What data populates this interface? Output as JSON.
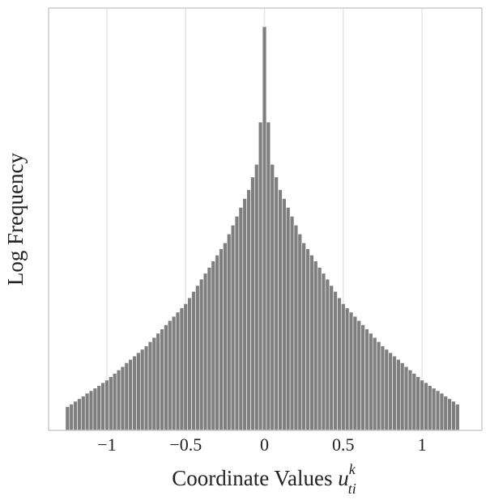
{
  "chart_data": {
    "type": "histogram",
    "x_label": {
      "text": "Coordinate Values",
      "symbol": "u",
      "subscript": "ti",
      "superscript": "k"
    },
    "y_label": "Log Frequency",
    "color": "#7f7f7f",
    "bins": [
      -1.2625,
      -1.2375,
      -1.2125,
      -1.1875,
      -1.1625,
      -1.1375,
      -1.1125,
      -1.0875,
      -1.0625,
      -1.0375,
      -1.0125,
      -0.9875,
      -0.9625,
      -0.9375,
      -0.9125,
      -0.8875,
      -0.8625,
      -0.8375,
      -0.8125,
      -0.7875,
      -0.7625,
      -0.7375,
      -0.7125,
      -0.6875,
      -0.6625,
      -0.6375,
      -0.6125,
      -0.5875,
      -0.5625,
      -0.5375,
      -0.5125,
      -0.4875,
      -0.4625,
      -0.4375,
      -0.4125,
      -0.3875,
      -0.3625,
      -0.3375,
      -0.3125,
      -0.2875,
      -0.2625,
      -0.2375,
      -0.2125,
      -0.1875,
      -0.1625,
      -0.1375,
      -0.1125,
      -0.0875,
      -0.0625,
      -0.0375,
      -0.0125,
      0.0125,
      0.0375,
      0.0625,
      0.0875,
      0.1125,
      0.1375,
      0.1625,
      0.1875,
      0.2125,
      0.2375,
      0.2625,
      0.2875,
      0.3125,
      0.3375,
      0.3625,
      0.3875,
      0.4125,
      0.4375,
      0.4625,
      0.4875,
      0.5125,
      0.5375,
      0.5625,
      0.5875,
      0.6125,
      0.6375,
      0.6625,
      0.6875,
      0.7125,
      0.7375,
      0.7625,
      0.7875,
      0.8125,
      0.8375,
      0.8625,
      0.8875,
      0.9125,
      0.9375,
      0.9625,
      0.9875,
      1.0125,
      1.0375,
      1.0625,
      1.0875,
      1.1125,
      1.1375,
      1.1625,
      1.1875,
      1.2125,
      1.2375
    ],
    "counts": [
      0.56,
      0.62,
      0.69,
      0.75,
      0.81,
      0.88,
      0.94,
      1.0,
      1.06,
      1.13,
      1.19,
      1.27,
      1.35,
      1.43,
      1.51,
      1.6,
      1.68,
      1.76,
      1.84,
      1.92,
      2.0,
      2.1,
      2.2,
      2.3,
      2.4,
      2.5,
      2.6,
      2.7,
      2.8,
      2.9,
      3.0,
      3.14,
      3.29,
      3.43,
      3.58,
      3.72,
      3.86,
      4.01,
      4.15,
      4.3,
      4.44,
      4.65,
      4.86,
      5.07,
      5.28,
      5.49,
      5.7,
      6.0,
      6.3,
      7.3,
      9.56,
      7.3,
      6.3,
      6.0,
      5.7,
      5.49,
      5.28,
      5.07,
      4.86,
      4.65,
      4.44,
      4.3,
      4.15,
      4.01,
      3.86,
      3.72,
      3.58,
      3.43,
      3.29,
      3.14,
      3.0,
      2.9,
      2.8,
      2.7,
      2.6,
      2.5,
      2.4,
      2.3,
      2.2,
      2.1,
      2.0,
      1.92,
      1.84,
      1.76,
      1.68,
      1.6,
      1.51,
      1.43,
      1.35,
      1.27,
      1.19,
      1.13,
      1.06,
      1.0,
      0.94,
      0.88,
      0.81,
      0.75,
      0.69,
      0.62
    ],
    "xlim": [
      -1.37,
      1.38
    ],
    "ylim": [
      0,
      10
    ],
    "xticks": [
      {
        "value": -1,
        "label": "−1"
      },
      {
        "value": -0.5,
        "label": "−0.5"
      },
      0,
      0.5,
      1
    ],
    "grid": true
  }
}
